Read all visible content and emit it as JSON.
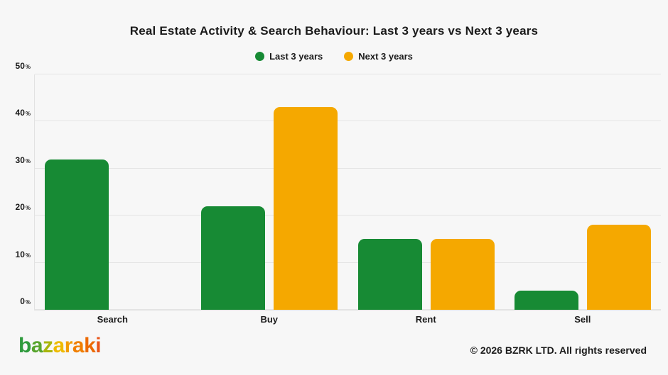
{
  "page": {
    "background": "#f7f7f7"
  },
  "chart_data": {
    "type": "bar",
    "title": "Real Estate Activity & Search Behaviour: Last 3 years vs Next 3 years",
    "categories": [
      "Search",
      "Buy",
      "Rent",
      "Sell"
    ],
    "series": [
      {
        "name": "Last 3 years",
        "color": "#178a34",
        "values": [
          32,
          22,
          15,
          4
        ]
      },
      {
        "name": "Next 3 years",
        "color": "#f5a800",
        "values": [
          null,
          43,
          15,
          18
        ]
      }
    ],
    "xlabel": "",
    "ylabel": "",
    "ylim": [
      0,
      50
    ],
    "y_ticks_values": [
      0,
      10,
      20,
      30,
      40,
      50
    ],
    "y_tick_suffix": "%",
    "grid": "horizontal",
    "legend_position": "top",
    "gridline_color": "#e4e4e4"
  },
  "footer": {
    "copyright": "© 2026 BZRK LTD. All rights reserved",
    "logo": {
      "text": "bazaraki",
      "letters": [
        {
          "ch": "b",
          "color": "#2f9b3d"
        },
        {
          "ch": "a",
          "color": "#58a52e"
        },
        {
          "ch": "z",
          "color": "#a9b60c"
        },
        {
          "ch": "a",
          "color": "#eebb00"
        },
        {
          "ch": "r",
          "color": "#f29c00"
        },
        {
          "ch": "a",
          "color": "#f07f00"
        },
        {
          "ch": "k",
          "color": "#ec6a00"
        },
        {
          "ch": "i",
          "color": "#e85418"
        }
      ]
    }
  }
}
